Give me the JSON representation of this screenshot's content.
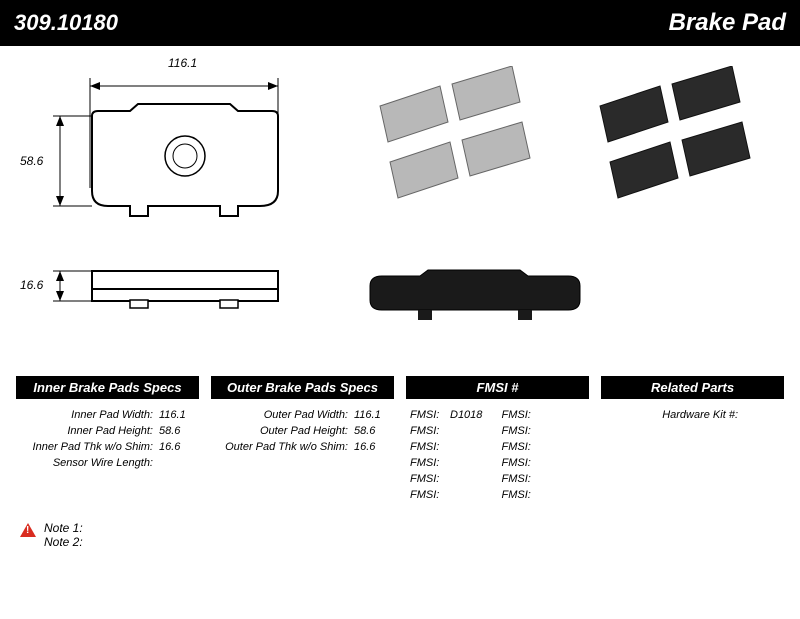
{
  "header": {
    "part_number": "309.10180",
    "title": "Brake Pad"
  },
  "dimensions": {
    "width": "116.1",
    "height": "58.6",
    "thickness": "16.6"
  },
  "specs": {
    "inner": {
      "header": "Inner Brake Pads Specs",
      "rows": [
        {
          "label": "Inner Pad Width:",
          "value": "116.1"
        },
        {
          "label": "Inner Pad Height:",
          "value": "58.6"
        },
        {
          "label": "Inner Pad Thk w/o Shim:",
          "value": "16.6"
        },
        {
          "label": "Sensor Wire Length:",
          "value": ""
        }
      ]
    },
    "outer": {
      "header": "Outer Brake Pads Specs",
      "rows": [
        {
          "label": "Outer Pad Width:",
          "value": "116.1"
        },
        {
          "label": "Outer Pad Height:",
          "value": "58.6"
        },
        {
          "label": "Outer Pad Thk w/o Shim:",
          "value": "16.6"
        }
      ]
    },
    "fmsi": {
      "header": "FMSI #",
      "left": [
        {
          "label": "FMSI:",
          "value": "D1018"
        },
        {
          "label": "FMSI:",
          "value": ""
        },
        {
          "label": "FMSI:",
          "value": ""
        },
        {
          "label": "FMSI:",
          "value": ""
        },
        {
          "label": "FMSI:",
          "value": ""
        },
        {
          "label": "FMSI:",
          "value": ""
        }
      ],
      "right": [
        {
          "label": "FMSI:",
          "value": ""
        },
        {
          "label": "FMSI:",
          "value": ""
        },
        {
          "label": "FMSI:",
          "value": ""
        },
        {
          "label": "FMSI:",
          "value": ""
        },
        {
          "label": "FMSI:",
          "value": ""
        },
        {
          "label": "FMSI:",
          "value": ""
        }
      ]
    },
    "related": {
      "header": "Related Parts",
      "rows": [
        {
          "label": "Hardware Kit #:",
          "value": ""
        }
      ]
    }
  },
  "notes": {
    "note1_label": "Note 1:",
    "note2_label": "Note 2:"
  },
  "colors": {
    "header_bg": "#000000",
    "header_fg": "#ffffff",
    "warn": "#d92c1f"
  }
}
